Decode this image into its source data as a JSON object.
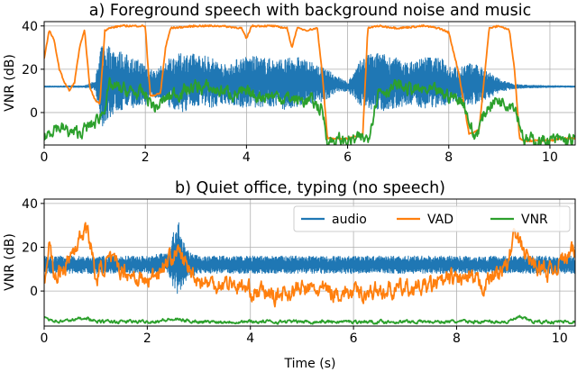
{
  "chart_data": [
    {
      "type": "line",
      "title": "a) Foreground speech with background noise and music",
      "xlabel": "",
      "ylabel": "VNR (dB)",
      "xlim": [
        0,
        10.5
      ],
      "ylim": [
        -15,
        42
      ],
      "xticks": [
        0,
        2,
        4,
        6,
        8,
        10
      ],
      "yticks": [
        0,
        20,
        40
      ],
      "grid": true,
      "series": [
        {
          "name": "audio",
          "color": "#1f77b4",
          "kind": "oscillating",
          "x": [
            0,
            0.3,
            0.8,
            1.0,
            1.15,
            1.4,
            1.7,
            2.0,
            2.2,
            2.5,
            2.8,
            3.0,
            3.3,
            3.6,
            3.9,
            4.2,
            4.5,
            4.8,
            5.0,
            5.2,
            5.5,
            5.8,
            6.0,
            6.3,
            6.6,
            6.9,
            7.2,
            7.5,
            7.8,
            8.1,
            8.4,
            8.7,
            9.0,
            9.3,
            9.6,
            9.9,
            10.2,
            10.5
          ],
          "y": [
            12,
            12,
            12,
            12.5,
            13,
            15,
            14,
            13,
            13,
            14,
            14,
            15,
            14,
            13,
            14,
            14,
            14,
            13,
            14,
            14,
            13,
            13,
            12,
            14,
            14,
            14,
            13,
            14,
            14,
            13,
            13,
            13,
            12.5,
            12,
            12,
            12,
            12,
            12
          ],
          "amp": [
            0.3,
            0.3,
            0.4,
            2,
            20,
            15,
            12,
            10,
            6,
            12,
            14,
            12,
            12,
            9,
            12,
            12,
            11,
            12,
            12,
            10,
            8,
            4,
            2,
            12,
            14,
            12,
            10,
            12,
            12,
            8,
            10,
            8,
            3,
            1,
            0.6,
            0.5,
            0.4,
            0.3
          ]
        },
        {
          "name": "VAD",
          "color": "#ff7f0e",
          "kind": "smooth",
          "x": [
            0,
            0.1,
            0.2,
            0.3,
            0.4,
            0.5,
            0.6,
            0.7,
            0.8,
            0.9,
            1.0,
            1.1,
            1.2,
            1.3,
            1.5,
            1.8,
            2.0,
            2.05,
            2.1,
            2.2,
            2.3,
            2.4,
            2.5,
            3.0,
            3.5,
            3.9,
            4.0,
            4.1,
            4.5,
            4.8,
            4.9,
            5.0,
            5.2,
            5.4,
            5.5,
            5.6,
            5.7,
            6.0,
            6.2,
            6.3,
            6.4,
            6.6,
            7.0,
            7.5,
            7.8,
            8.0,
            8.2,
            8.4,
            8.6,
            8.8,
            9.0,
            9.2,
            9.3,
            9.4,
            9.5,
            9.8,
            10.0,
            10.2,
            10.5
          ],
          "y": [
            25,
            38,
            33,
            20,
            14,
            10,
            14,
            30,
            38,
            12,
            6,
            4,
            38,
            39,
            40,
            40,
            40,
            22,
            8,
            8,
            9,
            30,
            39,
            40,
            40,
            39,
            34,
            40,
            40,
            39,
            30,
            39,
            38,
            39,
            18,
            -12,
            -12,
            -12,
            -11,
            -10,
            39,
            40,
            39,
            40,
            39,
            37,
            18,
            -10,
            -8,
            39,
            40,
            38,
            20,
            -12,
            -13,
            -13,
            -13,
            -12,
            -12
          ]
        },
        {
          "name": "VNR",
          "color": "#2ca02c",
          "kind": "noisy",
          "x": [
            0,
            0.2,
            0.4,
            0.6,
            0.8,
            1.0,
            1.15,
            1.3,
            1.6,
            2.0,
            2.2,
            2.5,
            3.0,
            3.5,
            4.0,
            4.5,
            5.0,
            5.3,
            5.5,
            5.6,
            6.0,
            6.4,
            6.6,
            7.0,
            7.5,
            8.0,
            8.3,
            8.5,
            8.8,
            9.0,
            9.3,
            9.5,
            10.0,
            10.5
          ],
          "y": [
            -12,
            -6,
            -8,
            -10,
            -8,
            -5,
            0,
            12,
            10,
            8,
            2,
            8,
            12,
            10,
            8,
            8,
            6,
            5,
            1,
            -13,
            -13,
            -12,
            10,
            12,
            10,
            8,
            5,
            -12,
            4,
            6,
            4,
            -13,
            -13,
            -13
          ],
          "noise": 2.5
        }
      ]
    },
    {
      "type": "line",
      "title": "b) Quiet office, typing (no speech)",
      "xlabel": "Time (s)",
      "ylabel": "VNR (dB)",
      "xlim": [
        0,
        10.3
      ],
      "ylim": [
        -16,
        42
      ],
      "xticks": [
        0,
        2,
        4,
        6,
        8,
        10
      ],
      "yticks": [
        0,
        20,
        40
      ],
      "grid": true,
      "legend": "top-right",
      "series": [
        {
          "name": "audio",
          "color": "#1f77b4",
          "kind": "oscillating",
          "x": [
            0,
            0.5,
            1.0,
            1.5,
            2.0,
            2.4,
            2.5,
            2.6,
            2.7,
            2.8,
            3.0,
            3.5,
            4.0,
            5.0,
            6.0,
            7.0,
            8.0,
            9.0,
            10.0,
            10.3
          ],
          "y": [
            12,
            12,
            12,
            12,
            12,
            13,
            14,
            15,
            13,
            12,
            12,
            12,
            12,
            12,
            12,
            12,
            12,
            12,
            12,
            12
          ],
          "amp": [
            4,
            4,
            4,
            4,
            4,
            5,
            12,
            20,
            10,
            6,
            4,
            4,
            4,
            4,
            4,
            4,
            4,
            4,
            4,
            4
          ]
        },
        {
          "name": "VAD",
          "color": "#ff7f0e",
          "kind": "noisy",
          "x": [
            0,
            0.1,
            0.2,
            0.4,
            0.6,
            0.8,
            0.9,
            1.0,
            1.2,
            1.5,
            2.0,
            2.4,
            2.6,
            2.8,
            3.0,
            3.3,
            3.6,
            4.0,
            4.5,
            5.0,
            5.5,
            6.0,
            6.5,
            7.0,
            7.5,
            8.0,
            8.5,
            9.0,
            9.1,
            9.3,
            9.5,
            9.8,
            10.0,
            10.3
          ],
          "y": [
            6,
            22,
            5,
            12,
            20,
            30,
            22,
            5,
            14,
            10,
            4,
            14,
            18,
            10,
            5,
            3,
            4,
            0,
            -2,
            1,
            0,
            -1,
            0,
            1,
            2,
            6,
            3,
            12,
            26,
            18,
            12,
            8,
            14,
            18
          ],
          "noise": 3.2
        },
        {
          "name": "VNR",
          "color": "#2ca02c",
          "kind": "noisy",
          "x": [
            0,
            0.3,
            0.6,
            0.8,
            1.0,
            1.5,
            2.0,
            2.5,
            3.0,
            4.0,
            5.0,
            6.0,
            7.0,
            8.0,
            8.5,
            9.0,
            9.2,
            9.5,
            10.0,
            10.3
          ],
          "y": [
            -12,
            -14,
            -13,
            -12,
            -14,
            -14,
            -14,
            -13,
            -14,
            -14,
            -14,
            -14,
            -14,
            -14,
            -14,
            -14,
            -12,
            -14,
            -14,
            -14
          ],
          "noise": 0.6
        }
      ]
    }
  ]
}
